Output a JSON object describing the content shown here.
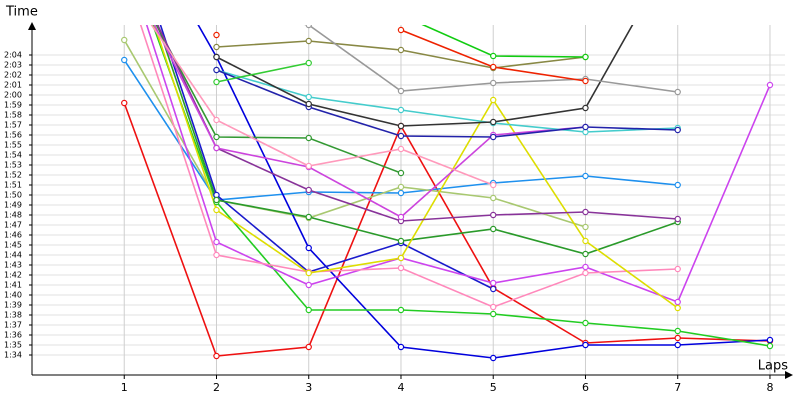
{
  "chart_data": {
    "type": "line",
    "x_label": "Laps",
    "y_label": "Time",
    "x": [
      1,
      2,
      3,
      4,
      5,
      6,
      7,
      8
    ],
    "xlim": [
      0,
      8.15
    ],
    "ylim": [
      92,
      127
    ],
    "xticks": [
      1,
      2,
      3,
      4,
      5,
      6,
      7,
      8
    ],
    "yticks": [
      {
        "value": 94,
        "label": "1:34"
      },
      {
        "value": 95,
        "label": "1:35"
      },
      {
        "value": 96,
        "label": "1:36"
      },
      {
        "value": 97,
        "label": "1:37"
      },
      {
        "value": 98,
        "label": "1:38"
      },
      {
        "value": 99,
        "label": "1:39"
      },
      {
        "value": 100,
        "label": "1:40"
      },
      {
        "value": 101,
        "label": "1:41"
      },
      {
        "value": 102,
        "label": "1:42"
      },
      {
        "value": 103,
        "label": "1:43"
      },
      {
        "value": 104,
        "label": "1:44"
      },
      {
        "value": 105,
        "label": "1:45"
      },
      {
        "value": 106,
        "label": "1:46"
      },
      {
        "value": 107,
        "label": "1:47"
      },
      {
        "value": 108,
        "label": "1:48"
      },
      {
        "value": 109,
        "label": "1:49"
      },
      {
        "value": 110,
        "label": "1:50"
      },
      {
        "value": 111,
        "label": "1:51"
      },
      {
        "value": 112,
        "label": "1:52"
      },
      {
        "value": 113,
        "label": "1:53"
      },
      {
        "value": 114,
        "label": "1:54"
      },
      {
        "value": 115,
        "label": "1:55"
      },
      {
        "value": 116,
        "label": "1:56"
      },
      {
        "value": 117,
        "label": "1:57"
      },
      {
        "value": 118,
        "label": "1:58"
      },
      {
        "value": 119,
        "label": "1:59"
      },
      {
        "value": 120,
        "label": "2:00"
      },
      {
        "value": 121,
        "label": "2:01"
      },
      {
        "value": 122,
        "label": "2:02"
      },
      {
        "value": 123,
        "label": "2:03"
      },
      {
        "value": 124,
        "label": "2:04"
      }
    ],
    "grid": true,
    "series": [
      {
        "color": "#ee1111",
        "values": [
          119.2,
          93.9,
          94.8,
          116.9,
          100.7,
          95.2,
          95.7,
          95.4
        ]
      },
      {
        "color": "#1e90ee",
        "values": [
          123.5,
          109.5,
          110.3,
          110.2,
          111.2,
          111.9,
          111.0,
          null
        ]
      },
      {
        "color": "#a8c870",
        "values": [
          125.5,
          109.5,
          107.7,
          110.8,
          109.7,
          106.8,
          null,
          null
        ]
      },
      {
        "color": "#0000dd",
        "values": [
          140,
          123.8,
          104.7,
          94.8,
          93.7,
          95.0,
          95.0,
          95.5
        ]
      },
      {
        "color": "#1a1acc",
        "values": [
          138,
          110.0,
          102.3,
          105.2,
          100.6,
          null,
          null,
          null
        ]
      },
      {
        "color": "#22cc22",
        "values": [
          135,
          109.3,
          98.5,
          98.5,
          98.1,
          97.2,
          96.4,
          94.9
        ]
      },
      {
        "color": "#339933",
        "values": [
          133,
          115.8,
          115.7,
          112.2,
          null,
          null,
          null,
          null
        ]
      },
      {
        "color": "#2a9a2a",
        "values": [
          137,
          109.5,
          107.8,
          105.4,
          106.6,
          104.1,
          107.3,
          null
        ]
      },
      {
        "color": "#cc44ee",
        "values": [
          134,
          105.3,
          101.0,
          103.7,
          101.2,
          102.8,
          99.3,
          121.0
        ]
      },
      {
        "color": "#ff88bb",
        "values": [
          132,
          104.0,
          102.3,
          102.7,
          98.8,
          102.2,
          102.6,
          null
        ]
      },
      {
        "color": "#dddd00",
        "values": [
          136,
          108.5,
          102.2,
          103.7,
          119.5,
          105.4,
          98.7,
          null
        ]
      },
      {
        "color": "#883399",
        "values": [
          134,
          114.7,
          110.5,
          107.4,
          108.0,
          108.3,
          107.6,
          null
        ]
      },
      {
        "color": "#cc44dd",
        "values": [
          133,
          114.7,
          112.8,
          107.8,
          116.0,
          116.8,
          null,
          null
        ]
      },
      {
        "color": "#ff99bb",
        "values": [
          131,
          117.5,
          112.9,
          114.6,
          111.0,
          null,
          null,
          null
        ]
      },
      {
        "color": "#44cccc",
        "values": [
          null,
          122.5,
          119.8,
          118.5,
          117.2,
          116.3,
          116.7,
          null
        ]
      },
      {
        "color": "#2222aa",
        "values": [
          null,
          122.5,
          118.8,
          115.9,
          115.8,
          116.8,
          116.5,
          null
        ]
      },
      {
        "color": "#333333",
        "values": [
          null,
          123.8,
          119.1,
          116.9,
          117.3,
          118.7,
          135,
          null
        ]
      },
      {
        "color": "#888844",
        "values": [
          null,
          124.8,
          125.4,
          124.5,
          122.7,
          123.8,
          null,
          null
        ]
      },
      {
        "color": "#999999",
        "values": [
          null,
          128.5,
          127,
          120.4,
          121.2,
          121.6,
          120.3,
          null
        ]
      },
      {
        "color": "#11cc11",
        "values": [
          null,
          null,
          null,
          128,
          123.9,
          123.8,
          null,
          null
        ]
      },
      {
        "color": "#ee2200",
        "values": [
          null,
          126,
          null,
          126.5,
          122.8,
          121.4,
          null,
          null
        ]
      },
      {
        "color": "#33cc33",
        "values": [
          null,
          121.3,
          123.2,
          null,
          null,
          null,
          null,
          null
        ]
      }
    ]
  }
}
